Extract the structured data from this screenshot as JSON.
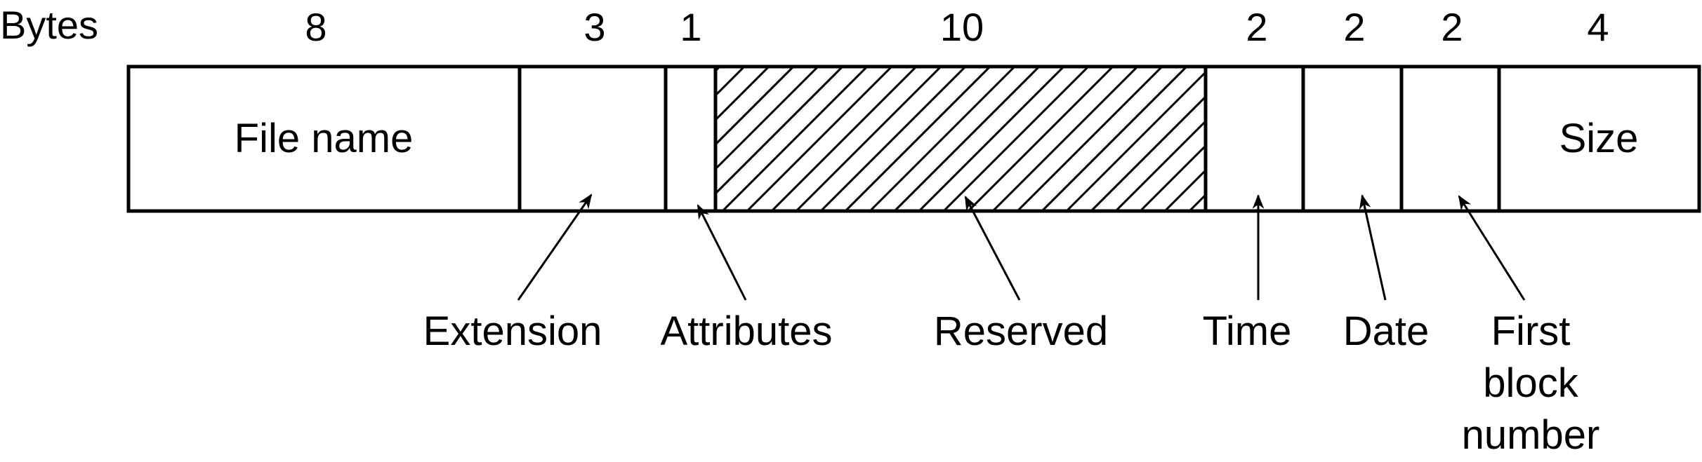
{
  "header_label": "Bytes",
  "fields": [
    {
      "bytes": "8",
      "inner_label": "File name",
      "callout": []
    },
    {
      "bytes": "3",
      "inner_label": "",
      "callout": [
        "Extension"
      ]
    },
    {
      "bytes": "1",
      "inner_label": "",
      "callout": [
        "Attributes"
      ]
    },
    {
      "bytes": "10",
      "inner_label": "",
      "callout": [
        "Reserved"
      ],
      "hatched": true
    },
    {
      "bytes": "2",
      "inner_label": "",
      "callout": [
        "Time"
      ]
    },
    {
      "bytes": "2",
      "inner_label": "",
      "callout": [
        "Date"
      ]
    },
    {
      "bytes": "2",
      "inner_label": "",
      "callout": [
        "First",
        "block",
        "number"
      ]
    },
    {
      "bytes": "4",
      "inner_label": "Size",
      "callout": []
    }
  ]
}
